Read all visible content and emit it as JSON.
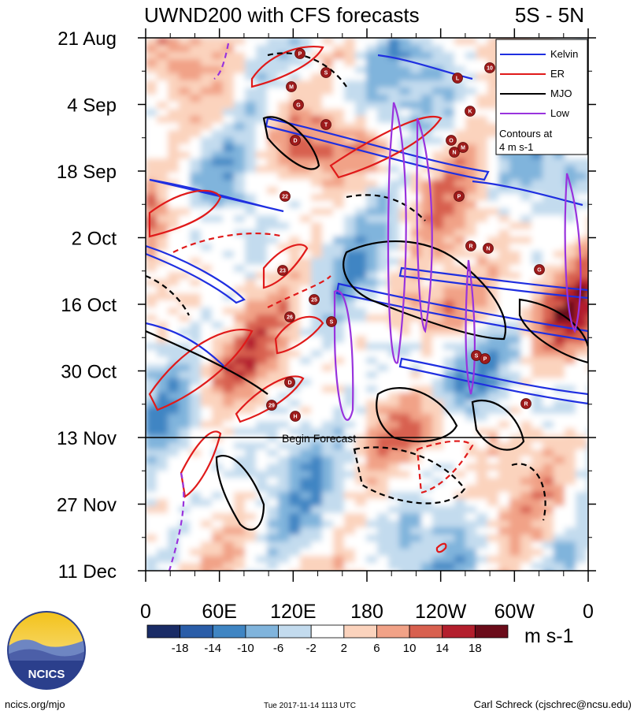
{
  "title_left": "UWND200 with CFS forecasts",
  "title_right": "5S - 5N",
  "chart_data": {
    "type": "heatmap",
    "title": "UWND200 with CFS forecasts",
    "region": "5S - 5N",
    "x_ticks": [
      "0",
      "60E",
      "120E",
      "180",
      "120W",
      "60W",
      "0"
    ],
    "y_ticks": [
      "21 Aug",
      "4 Sep",
      "18 Sep",
      "2 Oct",
      "16 Oct",
      "30 Oct",
      "13 Nov",
      "27 Nov",
      "11 Dec"
    ],
    "forecast_label": "Begin Forecast",
    "forecast_start": "13 Nov",
    "colorbar": {
      "levels": [
        "-18",
        "-14",
        "-10",
        "-6",
        "-2",
        "2",
        "6",
        "10",
        "14",
        "18"
      ],
      "units": "m s-1",
      "colors": [
        "#1a2c66",
        "#2a5da8",
        "#3f85c3",
        "#80b4dc",
        "#c3dbee",
        "#ffffff",
        "#fbd3bd",
        "#f1a287",
        "#d8604f",
        "#b31f2d",
        "#6b0c1a"
      ]
    },
    "legend": [
      {
        "name": "Kelvin",
        "color": "#1f2fe0"
      },
      {
        "name": "ER",
        "color": "#e01a1a"
      },
      {
        "name": "MJO",
        "color": "#000000"
      },
      {
        "name": "Low",
        "color": "#9933dd"
      }
    ],
    "legend_note": [
      "Contours at",
      "4 m s-1"
    ],
    "storm_labels": [
      "P",
      "S",
      "M",
      "G",
      "T",
      "D",
      "L",
      "10",
      "K",
      "O",
      "N",
      "M",
      "22",
      "P",
      "R",
      "N",
      "G",
      "23",
      "25",
      "26",
      "S",
      "D",
      "29",
      "H",
      "S",
      "P",
      "R"
    ]
  },
  "footer": {
    "logo_text": "NCICS",
    "url": "ncics.org/mjo",
    "timestamp": "Tue 2017-11-14 1113 UTC",
    "author": "Carl Schreck (cjschrec@ncsu.edu)"
  }
}
